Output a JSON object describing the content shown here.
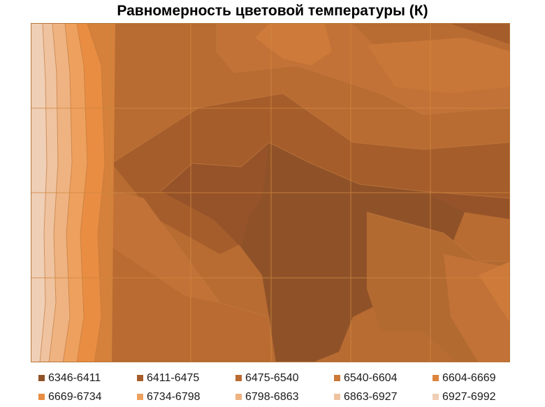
{
  "chart_data": {
    "type": "heatmap",
    "title": "Равномерность цветовой температуры (К)",
    "legend": [
      {
        "label": "6346-6411",
        "color": "#8f5228"
      },
      {
        "label": "6411-6475",
        "color": "#a55d2b"
      },
      {
        "label": "6475-6540",
        "color": "#b96b31"
      },
      {
        "label": "6540-6604",
        "color": "#cc7937"
      },
      {
        "label": "6604-6669",
        "color": "#dd843d"
      },
      {
        "label": "6669-6734",
        "color": "#e98d42"
      },
      {
        "label": "6734-6798",
        "color": "#eea15e"
      },
      {
        "label": "6798-6863",
        "color": "#efb382"
      },
      {
        "label": "6863-6927",
        "color": "#efc39f"
      },
      {
        "label": "6927-6992",
        "color": "#f0cfb7"
      }
    ],
    "grid_rows": 4,
    "grid_cols": 6,
    "grid": true
  }
}
